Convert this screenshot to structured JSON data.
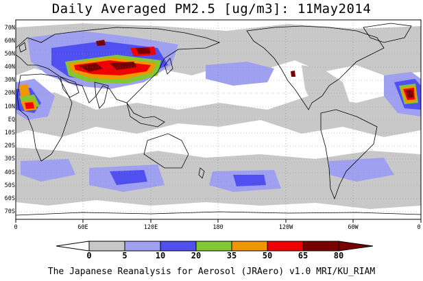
{
  "title": "Daily Averaged PM2.5 [ug/m3]: 11May2014",
  "footer": "The Japanese Reanalysis for Aerosol (JRAero) v1.0 MRI/KU_RIAM",
  "lat_labels": [
    "70N",
    "60N",
    "50N",
    "40N",
    "30N",
    "20N",
    "10N",
    "EQ",
    "10S",
    "20S",
    "30S",
    "40S",
    "50S",
    "60S",
    "70S"
  ],
  "lon_labels": [
    "0",
    "60E",
    "120E",
    "180",
    "120W",
    "60W",
    "0"
  ],
  "colorbar": {
    "labels": [
      "0",
      "5",
      "10",
      "20",
      "35",
      "50",
      "65",
      "80"
    ],
    "colors": [
      "#ffffff",
      "#c8c8c8",
      "#a0a0f0",
      "#5050f0",
      "#82c832",
      "#f09600",
      "#f00000",
      "#780000"
    ]
  }
}
